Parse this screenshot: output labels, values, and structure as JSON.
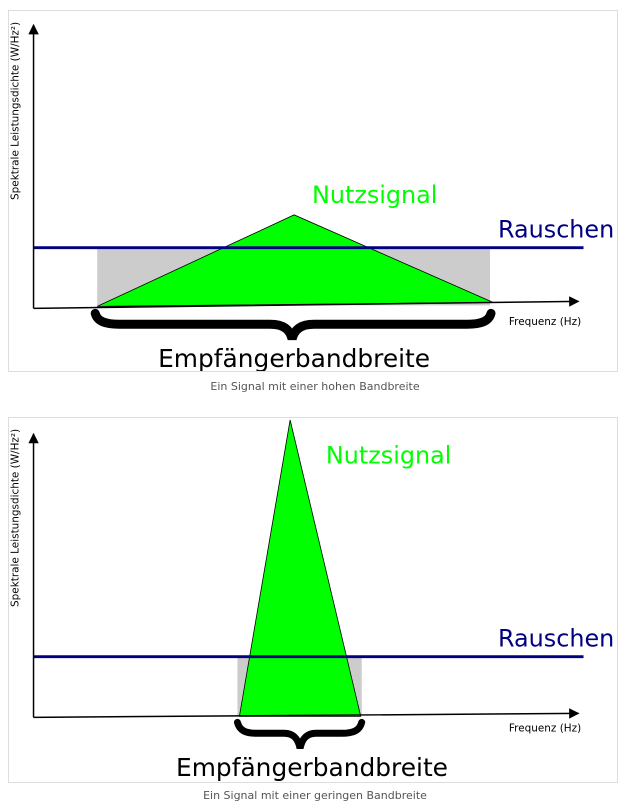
{
  "colors": {
    "signal": "#00ff00",
    "noise": "#000080",
    "band": "#cccccc",
    "axis": "#000000"
  },
  "figures": [
    {
      "y_axis_label": "Spektrale Leistungsdichte (W/Hz²)",
      "x_axis_label": "Frequenz (Hz)",
      "signal_label": "Nutzsignal",
      "noise_label": "Rauschen",
      "bandwidth_label": "Empfängerbandbreite",
      "caption": "Ein Signal mit einer hohen Bandbreite"
    },
    {
      "y_axis_label": "Spektrale Leistungsdichte (W/Hz²)",
      "x_axis_label": "Frequenz (Hz)",
      "signal_label": "Nutzsignal",
      "noise_label": "Rauschen",
      "bandwidth_label": "Empfängerbandbreite",
      "caption": "Ein Signal mit einer geringen Bandbreite"
    }
  ]
}
